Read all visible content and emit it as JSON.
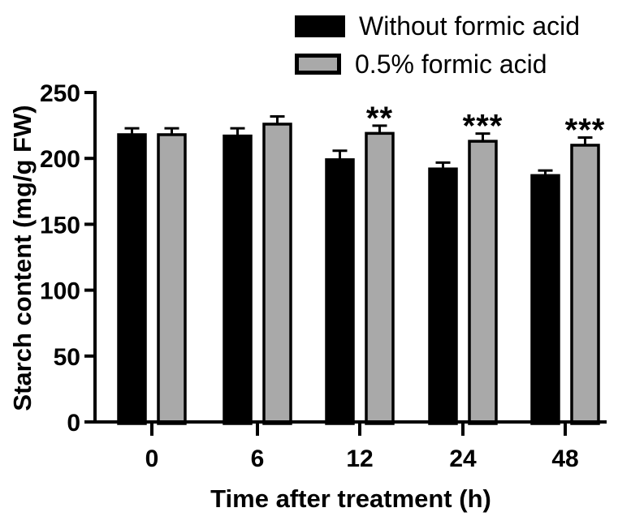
{
  "figure": {
    "background": "#ffffff"
  },
  "legend": {
    "items": [
      {
        "label": "Without formic acid",
        "swatch_fill": "#000000",
        "swatch_border": "#000000"
      },
      {
        "label": "0.5% formic acid",
        "swatch_fill": "#a9a9a9",
        "swatch_border": "#000000"
      }
    ]
  },
  "chart_data": {
    "type": "bar",
    "title": "",
    "xlabel": "Time after treatment (h)",
    "ylabel": "Starch content (mg/g FW)",
    "categories": [
      "0",
      "6",
      "12",
      "24",
      "48"
    ],
    "series": [
      {
        "name": "Without formic acid",
        "color": "#000000",
        "border": "#000000",
        "values": [
          218,
          217,
          199,
          192,
          187
        ],
        "errors": [
          3,
          4,
          5,
          3,
          2
        ]
      },
      {
        "name": "0.5% formic acid",
        "color": "#a9a9a9",
        "border": "#000000",
        "values": [
          218,
          226,
          219,
          213,
          210
        ],
        "errors": [
          3,
          4,
          4,
          4,
          4
        ]
      }
    ],
    "significance": {
      "on_series": "0.5% formic acid",
      "labels": [
        "",
        "",
        "**",
        "***",
        "***"
      ]
    },
    "ylim": [
      0,
      250
    ],
    "yticks": [
      0,
      50,
      100,
      150,
      200,
      250
    ],
    "grid": false,
    "legend_position": "top-right",
    "error_bars": "upper",
    "axis_color": "#000000"
  }
}
